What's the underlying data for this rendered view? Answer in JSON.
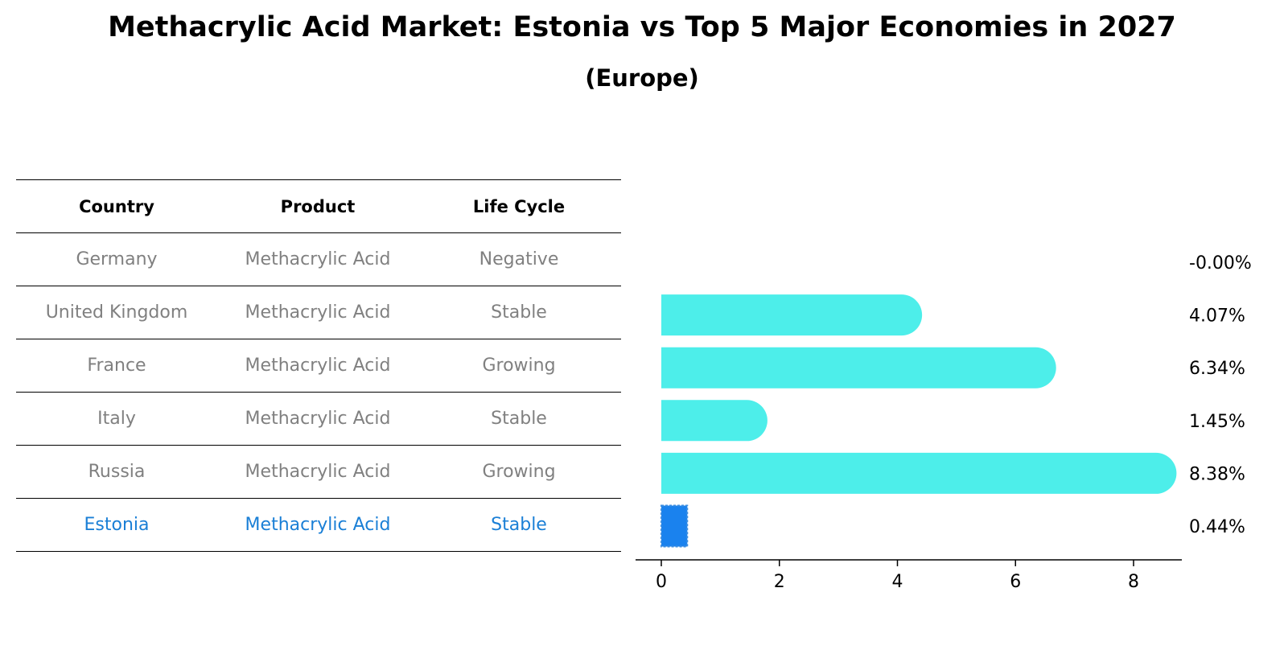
{
  "header": {
    "title": "Methacrylic Acid Market: Estonia vs Top 5 Major Economies in 2027",
    "subtitle": "(Europe)"
  },
  "table": {
    "columns": [
      "Country",
      "Product",
      "Life Cycle"
    ],
    "rows": [
      [
        "Germany",
        "Methacrylic Acid",
        "Negative"
      ],
      [
        "United Kingdom",
        "Methacrylic Acid",
        "Stable"
      ],
      [
        "France",
        "Methacrylic Acid",
        "Growing"
      ],
      [
        "Italy",
        "Methacrylic Acid",
        "Stable"
      ],
      [
        "Russia",
        "Methacrylic Acid",
        "Growing"
      ],
      [
        "Estonia",
        "Methacrylic Acid",
        "Stable"
      ]
    ],
    "highlight_row": 5
  },
  "colors": {
    "bar": "#4deeea",
    "highlight": "#1a82ee",
    "muted_text": "#808080",
    "highlight_text": "#1a7fd6"
  },
  "chart_data": {
    "type": "bar",
    "orientation": "horizontal",
    "categories": [
      "Germany",
      "United Kingdom",
      "France",
      "Italy",
      "Russia",
      "Estonia"
    ],
    "values": [
      -0.0,
      4.07,
      6.34,
      1.45,
      8.38,
      0.44
    ],
    "value_labels": [
      "-0.00%",
      "4.07%",
      "6.34%",
      "1.45%",
      "8.38%",
      "0.44%"
    ],
    "highlight_category": "Estonia",
    "xticks": [
      0,
      2,
      4,
      6,
      8
    ],
    "xlim": [
      -0.42,
      8.8
    ],
    "grid": false
  }
}
